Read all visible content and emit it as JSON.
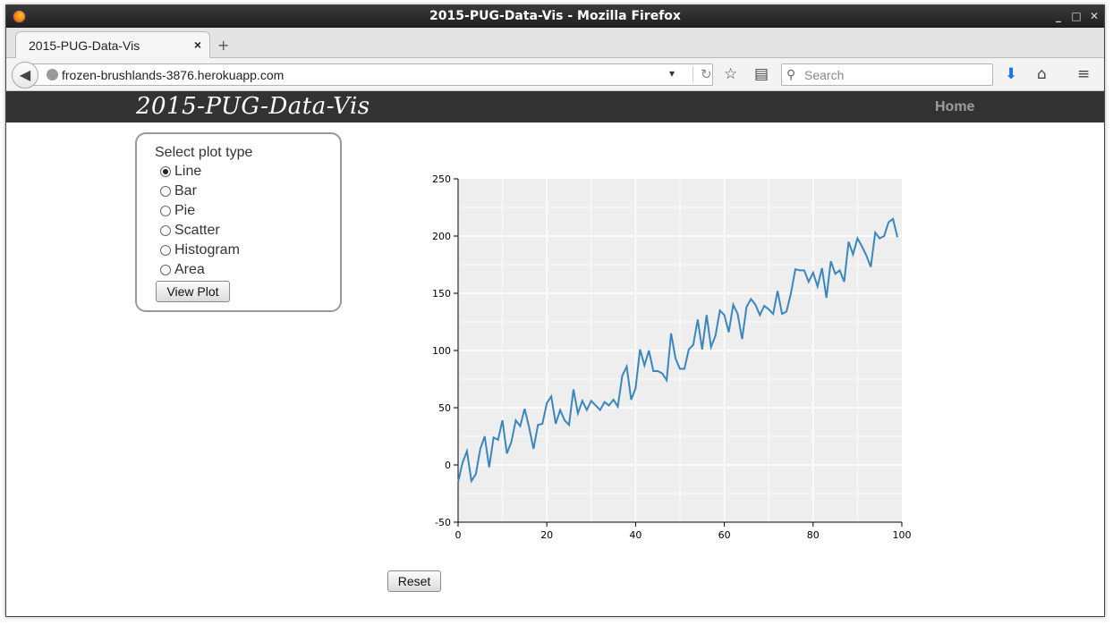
{
  "window": {
    "title": "2015-PUG-Data-Vis - Mozilla Firefox"
  },
  "tab": {
    "label": "2015-PUG-Data-Vis",
    "close": "×",
    "new": "+"
  },
  "navbar": {
    "url": "frozen-brushlands-3876.herokuapp.com",
    "search_placeholder": "Search"
  },
  "site": {
    "brand": "2015-PUG-Data-Vis",
    "home_link": "Home"
  },
  "plot_selector": {
    "title": "Select plot type",
    "options": [
      "Line",
      "Bar",
      "Pie",
      "Scatter",
      "Histogram",
      "Area"
    ],
    "selected": "Line",
    "view_button": "View Plot"
  },
  "reset_button": "Reset",
  "colors": {
    "line": "#3a87bf",
    "plot_bg": "#eeeeee",
    "site_bar": "#333333"
  },
  "chart_data": {
    "type": "line",
    "title": "",
    "xlabel": "",
    "ylabel": "",
    "xlim": [
      0,
      100
    ],
    "ylim": [
      -50,
      250
    ],
    "xticks": [
      0,
      20,
      40,
      60,
      80,
      100
    ],
    "yticks": [
      -50,
      0,
      50,
      100,
      150,
      200,
      250
    ],
    "grid": true,
    "series": [
      {
        "values": [
          -15,
          2,
          12,
          -14,
          -8,
          14,
          25,
          -2,
          24,
          22,
          39,
          10,
          20,
          39,
          34,
          49,
          33,
          14,
          35,
          36,
          54,
          60,
          36,
          48,
          39,
          35,
          66,
          45,
          56,
          48,
          56,
          52,
          48,
          55,
          52,
          57,
          51,
          78,
          86,
          57,
          67,
          101,
          87,
          100,
          82,
          82,
          80,
          74,
          115,
          93,
          84,
          84,
          101,
          105,
          127,
          101,
          131,
          103,
          113,
          135,
          131,
          116,
          140,
          132,
          110,
          138,
          145,
          140,
          131,
          139,
          136,
          132,
          152,
          132,
          134,
          150,
          171,
          170,
          170,
          160,
          168,
          156,
          172,
          146,
          178,
          167,
          170,
          160,
          195,
          184,
          198,
          191,
          183,
          173,
          203,
          198,
          200,
          212,
          215,
          199
        ]
      }
    ]
  }
}
